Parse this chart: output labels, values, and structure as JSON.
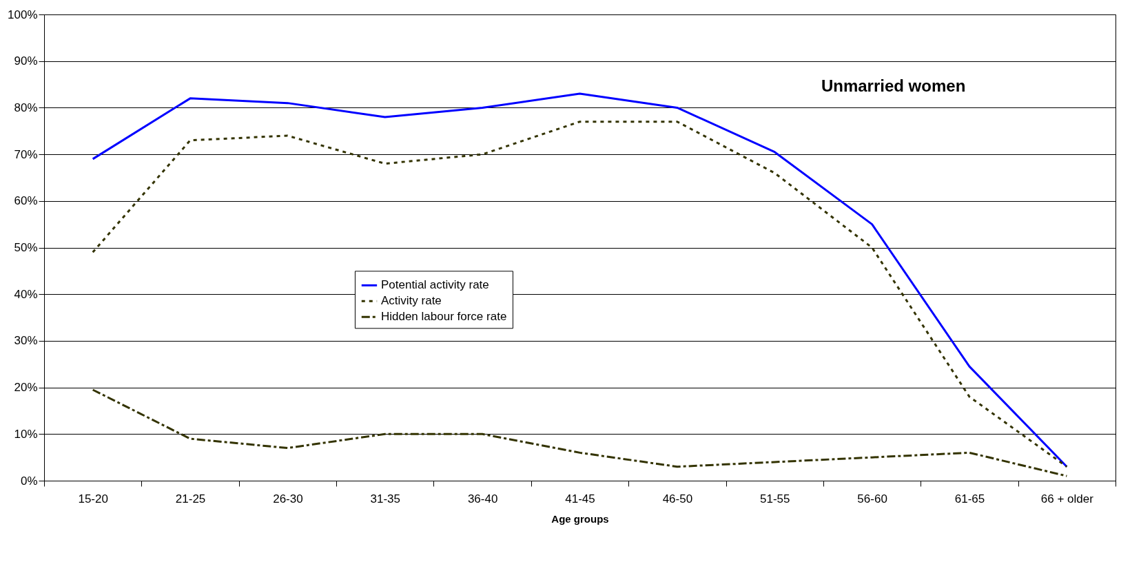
{
  "chart_data": {
    "type": "line",
    "title": "Unmarried women",
    "xlabel": "Age groups",
    "categories": [
      "15-20",
      "21-25",
      "26-30",
      "31-35",
      "36-40",
      "41-45",
      "46-50",
      "51-55",
      "56-60",
      "61-65",
      "66 + older"
    ],
    "series": [
      {
        "name": "Potential activity rate",
        "color": "#0000ff",
        "line_style": "solid",
        "values": [
          69,
          82,
          81,
          78,
          80,
          83,
          80,
          70.5,
          55,
          24.5,
          3
        ]
      },
      {
        "name": "Activity rate",
        "color": "#333300",
        "line_style": "dotted",
        "values": [
          49,
          73,
          74,
          68,
          70,
          77,
          77,
          66,
          50,
          18,
          3
        ]
      },
      {
        "name": "Hidden labour force rate",
        "color": "#333300",
        "line_style": "dashed",
        "values": [
          19.5,
          9,
          7,
          10,
          10,
          6,
          3,
          4,
          5,
          6,
          1
        ]
      }
    ],
    "ylim": [
      0,
      100
    ],
    "yticks": [
      {
        "value": 0,
        "label": "0%"
      },
      {
        "value": 10,
        "label": "10%"
      },
      {
        "value": 20,
        "label": "20%"
      },
      {
        "value": 30,
        "label": "30%"
      },
      {
        "value": 40,
        "label": "40%"
      },
      {
        "value": 50,
        "label": "50%"
      },
      {
        "value": 60,
        "label": "60%"
      },
      {
        "value": 70,
        "label": "70%"
      },
      {
        "value": 80,
        "label": "80%"
      },
      {
        "value": 90,
        "label": "90%"
      },
      {
        "value": 100,
        "label": "100%"
      }
    ],
    "grid": "y",
    "legend": "center",
    "marker": "none"
  }
}
